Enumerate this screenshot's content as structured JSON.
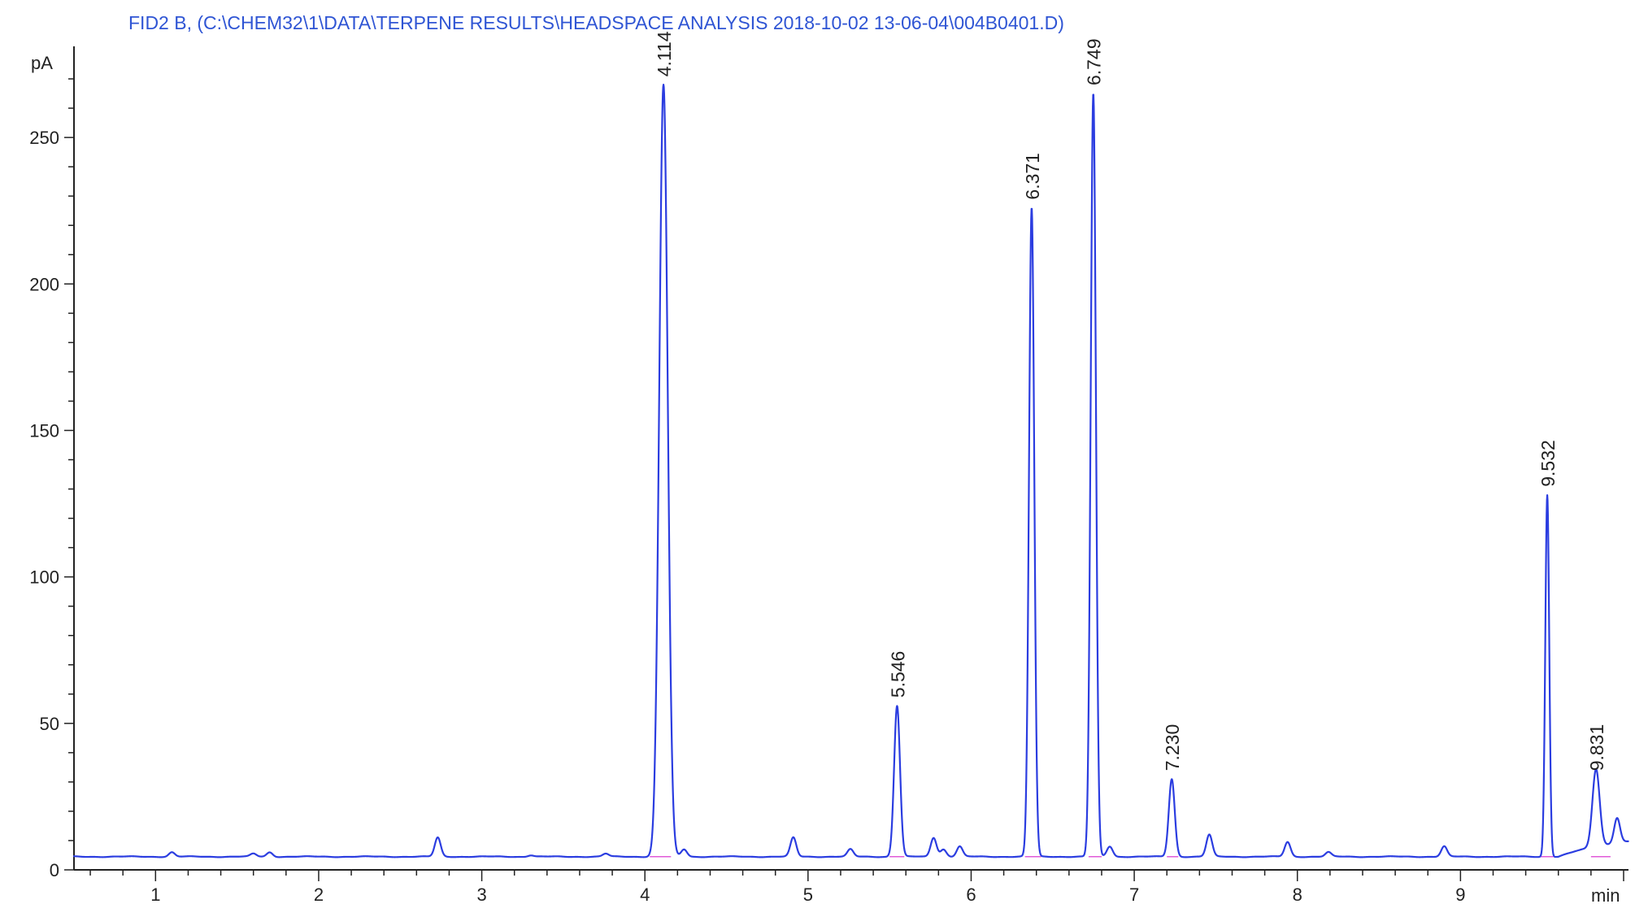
{
  "chart_data": {
    "type": "line",
    "title": "FID2 B,  (C:\\CHEM32\\1\\DATA\\TERPENE RESULTS\\HEADSPACE ANALYSIS 2018-10-02 13-06-04\\004B0401.D)",
    "ylabel": "pA",
    "xlabel": "min",
    "xlim": [
      0.5,
      10.03
    ],
    "ylim": [
      0,
      280
    ],
    "x_ticks": [
      1,
      2,
      3,
      4,
      5,
      6,
      7,
      8,
      9
    ],
    "y_ticks": [
      0,
      50,
      100,
      150,
      200,
      250
    ],
    "baseline": 4.5,
    "grid": false,
    "colors": {
      "title": "#2f55d4",
      "trace": "#2b3de0",
      "integration": "#e05ad8",
      "axis": "#222222"
    },
    "series": [
      {
        "values": [
          {
            "x": 1.1,
            "y": 6
          },
          {
            "x": 1.6,
            "y": 5.5
          },
          {
            "x": 1.7,
            "y": 6
          },
          {
            "x": 2.73,
            "y": 11
          },
          {
            "x": 3.3,
            "y": 5
          },
          {
            "x": 3.76,
            "y": 5.5
          },
          {
            "x": 4.114,
            "y": 268
          },
          {
            "x": 4.24,
            "y": 7
          },
          {
            "x": 4.91,
            "y": 11
          },
          {
            "x": 5.26,
            "y": 7
          },
          {
            "x": 5.546,
            "y": 56
          },
          {
            "x": 5.77,
            "y": 11
          },
          {
            "x": 5.83,
            "y": 7
          },
          {
            "x": 5.93,
            "y": 8
          },
          {
            "x": 6.371,
            "y": 226
          },
          {
            "x": 6.749,
            "y": 265
          },
          {
            "x": 6.85,
            "y": 8
          },
          {
            "x": 7.23,
            "y": 31
          },
          {
            "x": 7.46,
            "y": 12
          },
          {
            "x": 7.94,
            "y": 9.5
          },
          {
            "x": 8.19,
            "y": 6
          },
          {
            "x": 8.9,
            "y": 8
          },
          {
            "x": 9.532,
            "y": 128
          },
          {
            "x": 9.831,
            "y": 31
          },
          {
            "x": 9.96,
            "y": 13
          }
        ]
      }
    ],
    "peak_labels": [
      {
        "x": 4.114,
        "label": "4.114"
      },
      {
        "x": 5.546,
        "label": "5.546"
      },
      {
        "x": 6.371,
        "label": "6.371"
      },
      {
        "x": 6.749,
        "label": "6.749"
      },
      {
        "x": 7.23,
        "label": "7.230"
      },
      {
        "x": 9.532,
        "label": "9.532"
      },
      {
        "x": 9.831,
        "label": "9.831"
      }
    ]
  }
}
